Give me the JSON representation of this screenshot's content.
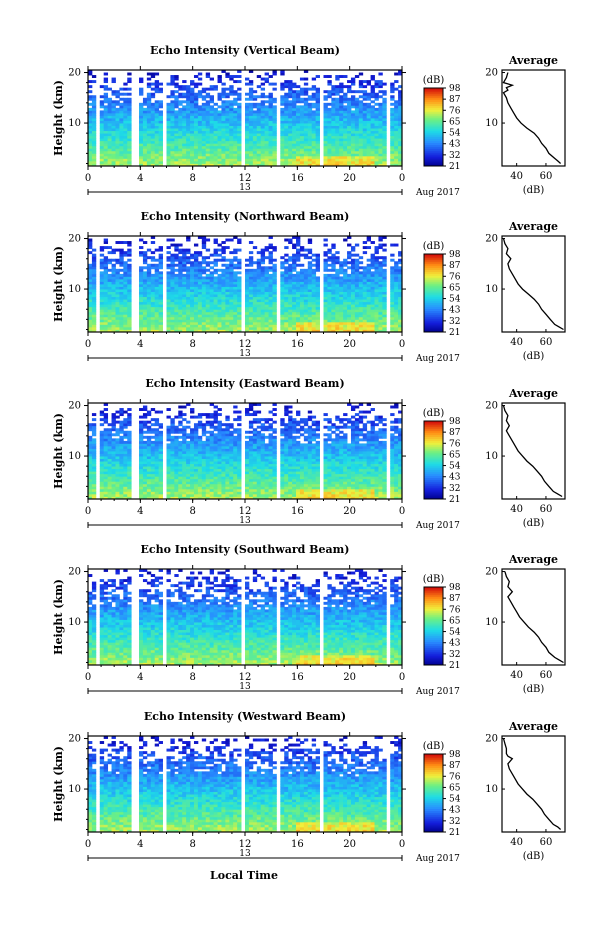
{
  "figure": {
    "x_label": "Local Time",
    "date_label": "Aug 2017",
    "day_marker": "13",
    "heatmap_ylabel": "Height (km)",
    "colorbar_unit": "(dB)",
    "profile_title": "Average",
    "profile_xlabel": "(dB)"
  },
  "chart_data": [
    {
      "type": "heatmap",
      "title": "Echo Intensity (Vertical Beam)",
      "x_ticks": [
        "0",
        "4",
        "8",
        "12",
        "16",
        "20",
        "0"
      ],
      "xlim": [
        0,
        24
      ],
      "y_ticks": [
        "10",
        "20"
      ],
      "ylim": [
        1.5,
        20.5
      ],
      "colorbar_ticks": [
        "21",
        "32",
        "43",
        "54",
        "65",
        "76",
        "87",
        "98"
      ],
      "data_gaps_hours": [
        [
          0.6,
          0.9
        ],
        [
          3.4,
          3.8
        ],
        [
          5.7,
          6.0
        ],
        [
          11.7,
          12.1
        ],
        [
          14.4,
          14.7
        ],
        [
          17.8,
          18.1
        ],
        [
          22.8,
          23.1
        ]
      ],
      "profile": {
        "type": "line",
        "title": "Average",
        "xlabel": "(dB)",
        "x_ticks": [
          "40",
          "60"
        ],
        "y_ticks": [
          "10",
          "20"
        ],
        "xlim": [
          30,
          73
        ],
        "ylim": [
          1.5,
          20.5
        ],
        "height_km": [
          2,
          2.5,
          3,
          4,
          5,
          6,
          7,
          8,
          9,
          10,
          11,
          12,
          13,
          14,
          15,
          16,
          16.5,
          17,
          17.5,
          18,
          19,
          20
        ],
        "db": [
          70,
          68,
          66,
          62,
          60,
          57,
          55,
          52,
          47,
          43,
          40,
          38,
          36,
          34,
          33,
          31,
          34,
          33,
          37,
          31,
          33,
          34
        ]
      }
    },
    {
      "type": "heatmap",
      "title": "Echo Intensity (Northward Beam)",
      "x_ticks": [
        "0",
        "4",
        "8",
        "12",
        "16",
        "20",
        "0"
      ],
      "xlim": [
        0,
        24
      ],
      "y_ticks": [
        "10",
        "20"
      ],
      "ylim": [
        1.5,
        20.5
      ],
      "colorbar_ticks": [
        "21",
        "32",
        "43",
        "54",
        "65",
        "76",
        "87",
        "98"
      ],
      "data_gaps_hours": [
        [
          0.6,
          0.9
        ],
        [
          3.4,
          3.8
        ],
        [
          5.7,
          6.0
        ],
        [
          11.7,
          12.1
        ],
        [
          14.4,
          14.7
        ],
        [
          17.8,
          18.1
        ],
        [
          22.8,
          23.1
        ]
      ],
      "profile": {
        "type": "line",
        "title": "Average",
        "xlabel": "(dB)",
        "x_ticks": [
          "40",
          "60"
        ],
        "y_ticks": [
          "10",
          "20"
        ],
        "xlim": [
          30,
          73
        ],
        "ylim": [
          1.5,
          20.5
        ],
        "height_km": [
          2,
          2.5,
          3,
          4,
          5,
          6,
          7,
          8,
          9,
          10,
          11,
          12,
          13,
          14,
          15,
          16,
          17,
          18,
          19,
          20
        ],
        "db": [
          72,
          69,
          66,
          63,
          60,
          57,
          55,
          52,
          48,
          44,
          41,
          39,
          37,
          35,
          34,
          36,
          33,
          34,
          32,
          31
        ]
      }
    },
    {
      "type": "heatmap",
      "title": "Echo Intensity (Eastward Beam)",
      "x_ticks": [
        "0",
        "4",
        "8",
        "12",
        "16",
        "20",
        "0"
      ],
      "xlim": [
        0,
        24
      ],
      "y_ticks": [
        "10",
        "20"
      ],
      "ylim": [
        1.5,
        20.5
      ],
      "colorbar_ticks": [
        "21",
        "32",
        "43",
        "54",
        "65",
        "76",
        "87",
        "98"
      ],
      "data_gaps_hours": [
        [
          0.6,
          0.9
        ],
        [
          3.4,
          3.8
        ],
        [
          5.7,
          6.0
        ],
        [
          11.7,
          12.1
        ],
        [
          14.4,
          14.7
        ],
        [
          17.8,
          18.1
        ],
        [
          22.8,
          23.1
        ]
      ],
      "profile": {
        "type": "line",
        "title": "Average",
        "xlabel": "(dB)",
        "x_ticks": [
          "40",
          "60"
        ],
        "y_ticks": [
          "10",
          "20"
        ],
        "xlim": [
          30,
          73
        ],
        "ylim": [
          1.5,
          20.5
        ],
        "height_km": [
          2,
          2.5,
          3,
          4,
          5,
          6,
          7,
          8,
          9,
          10,
          11,
          12,
          13,
          14,
          15,
          16,
          17,
          18,
          19,
          20
        ],
        "db": [
          71,
          68,
          65,
          62,
          59,
          57,
          54,
          51,
          47,
          44,
          41,
          39,
          37,
          35,
          33,
          35,
          33,
          34,
          32,
          31
        ]
      }
    },
    {
      "type": "heatmap",
      "title": "Echo Intensity (Southward Beam)",
      "x_ticks": [
        "0",
        "4",
        "8",
        "12",
        "16",
        "20",
        "0"
      ],
      "xlim": [
        0,
        24
      ],
      "y_ticks": [
        "10",
        "20"
      ],
      "ylim": [
        1.5,
        20.5
      ],
      "colorbar_ticks": [
        "21",
        "32",
        "43",
        "54",
        "65",
        "76",
        "87",
        "98"
      ],
      "data_gaps_hours": [
        [
          0.6,
          0.9
        ],
        [
          3.4,
          3.8
        ],
        [
          5.7,
          6.0
        ],
        [
          11.7,
          12.1
        ],
        [
          14.4,
          14.7
        ],
        [
          17.8,
          18.1
        ],
        [
          22.8,
          23.1
        ]
      ],
      "profile": {
        "type": "line",
        "title": "Average",
        "xlabel": "(dB)",
        "x_ticks": [
          "40",
          "60"
        ],
        "y_ticks": [
          "10",
          "20"
        ],
        "xlim": [
          30,
          73
        ],
        "ylim": [
          1.5,
          20.5
        ],
        "height_km": [
          2,
          2.5,
          3,
          4,
          5,
          6,
          7,
          8,
          9,
          10,
          11,
          12,
          13,
          14,
          15,
          16,
          17,
          18,
          19,
          20
        ],
        "db": [
          72,
          69,
          66,
          62,
          60,
          57,
          55,
          52,
          48,
          45,
          42,
          40,
          38,
          36,
          34,
          37,
          34,
          35,
          33,
          32
        ]
      }
    },
    {
      "type": "heatmap",
      "title": "Echo Intensity (Westward Beam)",
      "x_ticks": [
        "0",
        "4",
        "8",
        "12",
        "16",
        "20",
        "0"
      ],
      "xlim": [
        0,
        24
      ],
      "y_ticks": [
        "10",
        "20"
      ],
      "ylim": [
        1.5,
        20.5
      ],
      "colorbar_ticks": [
        "21",
        "32",
        "43",
        "54",
        "65",
        "76",
        "87",
        "98"
      ],
      "data_gaps_hours": [
        [
          0.6,
          0.9
        ],
        [
          3.4,
          3.8
        ],
        [
          5.7,
          6.0
        ],
        [
          11.7,
          12.1
        ],
        [
          14.4,
          14.7
        ],
        [
          17.8,
          18.1
        ],
        [
          22.8,
          23.1
        ]
      ],
      "profile": {
        "type": "line",
        "title": "Average",
        "xlabel": "(dB)",
        "x_ticks": [
          "40",
          "60"
        ],
        "y_ticks": [
          "10",
          "20"
        ],
        "xlim": [
          30,
          73
        ],
        "ylim": [
          1.5,
          20.5
        ],
        "height_km": [
          2,
          2.5,
          3,
          4,
          5,
          6,
          7,
          8,
          9,
          10,
          11,
          12,
          13,
          14,
          15,
          16,
          16.5,
          17,
          18,
          19,
          20
        ],
        "db": [
          70,
          68,
          65,
          62,
          59,
          57,
          54,
          51,
          47,
          44,
          41,
          39,
          37,
          35,
          34,
          37,
          34,
          33,
          33,
          32,
          31
        ]
      }
    }
  ]
}
